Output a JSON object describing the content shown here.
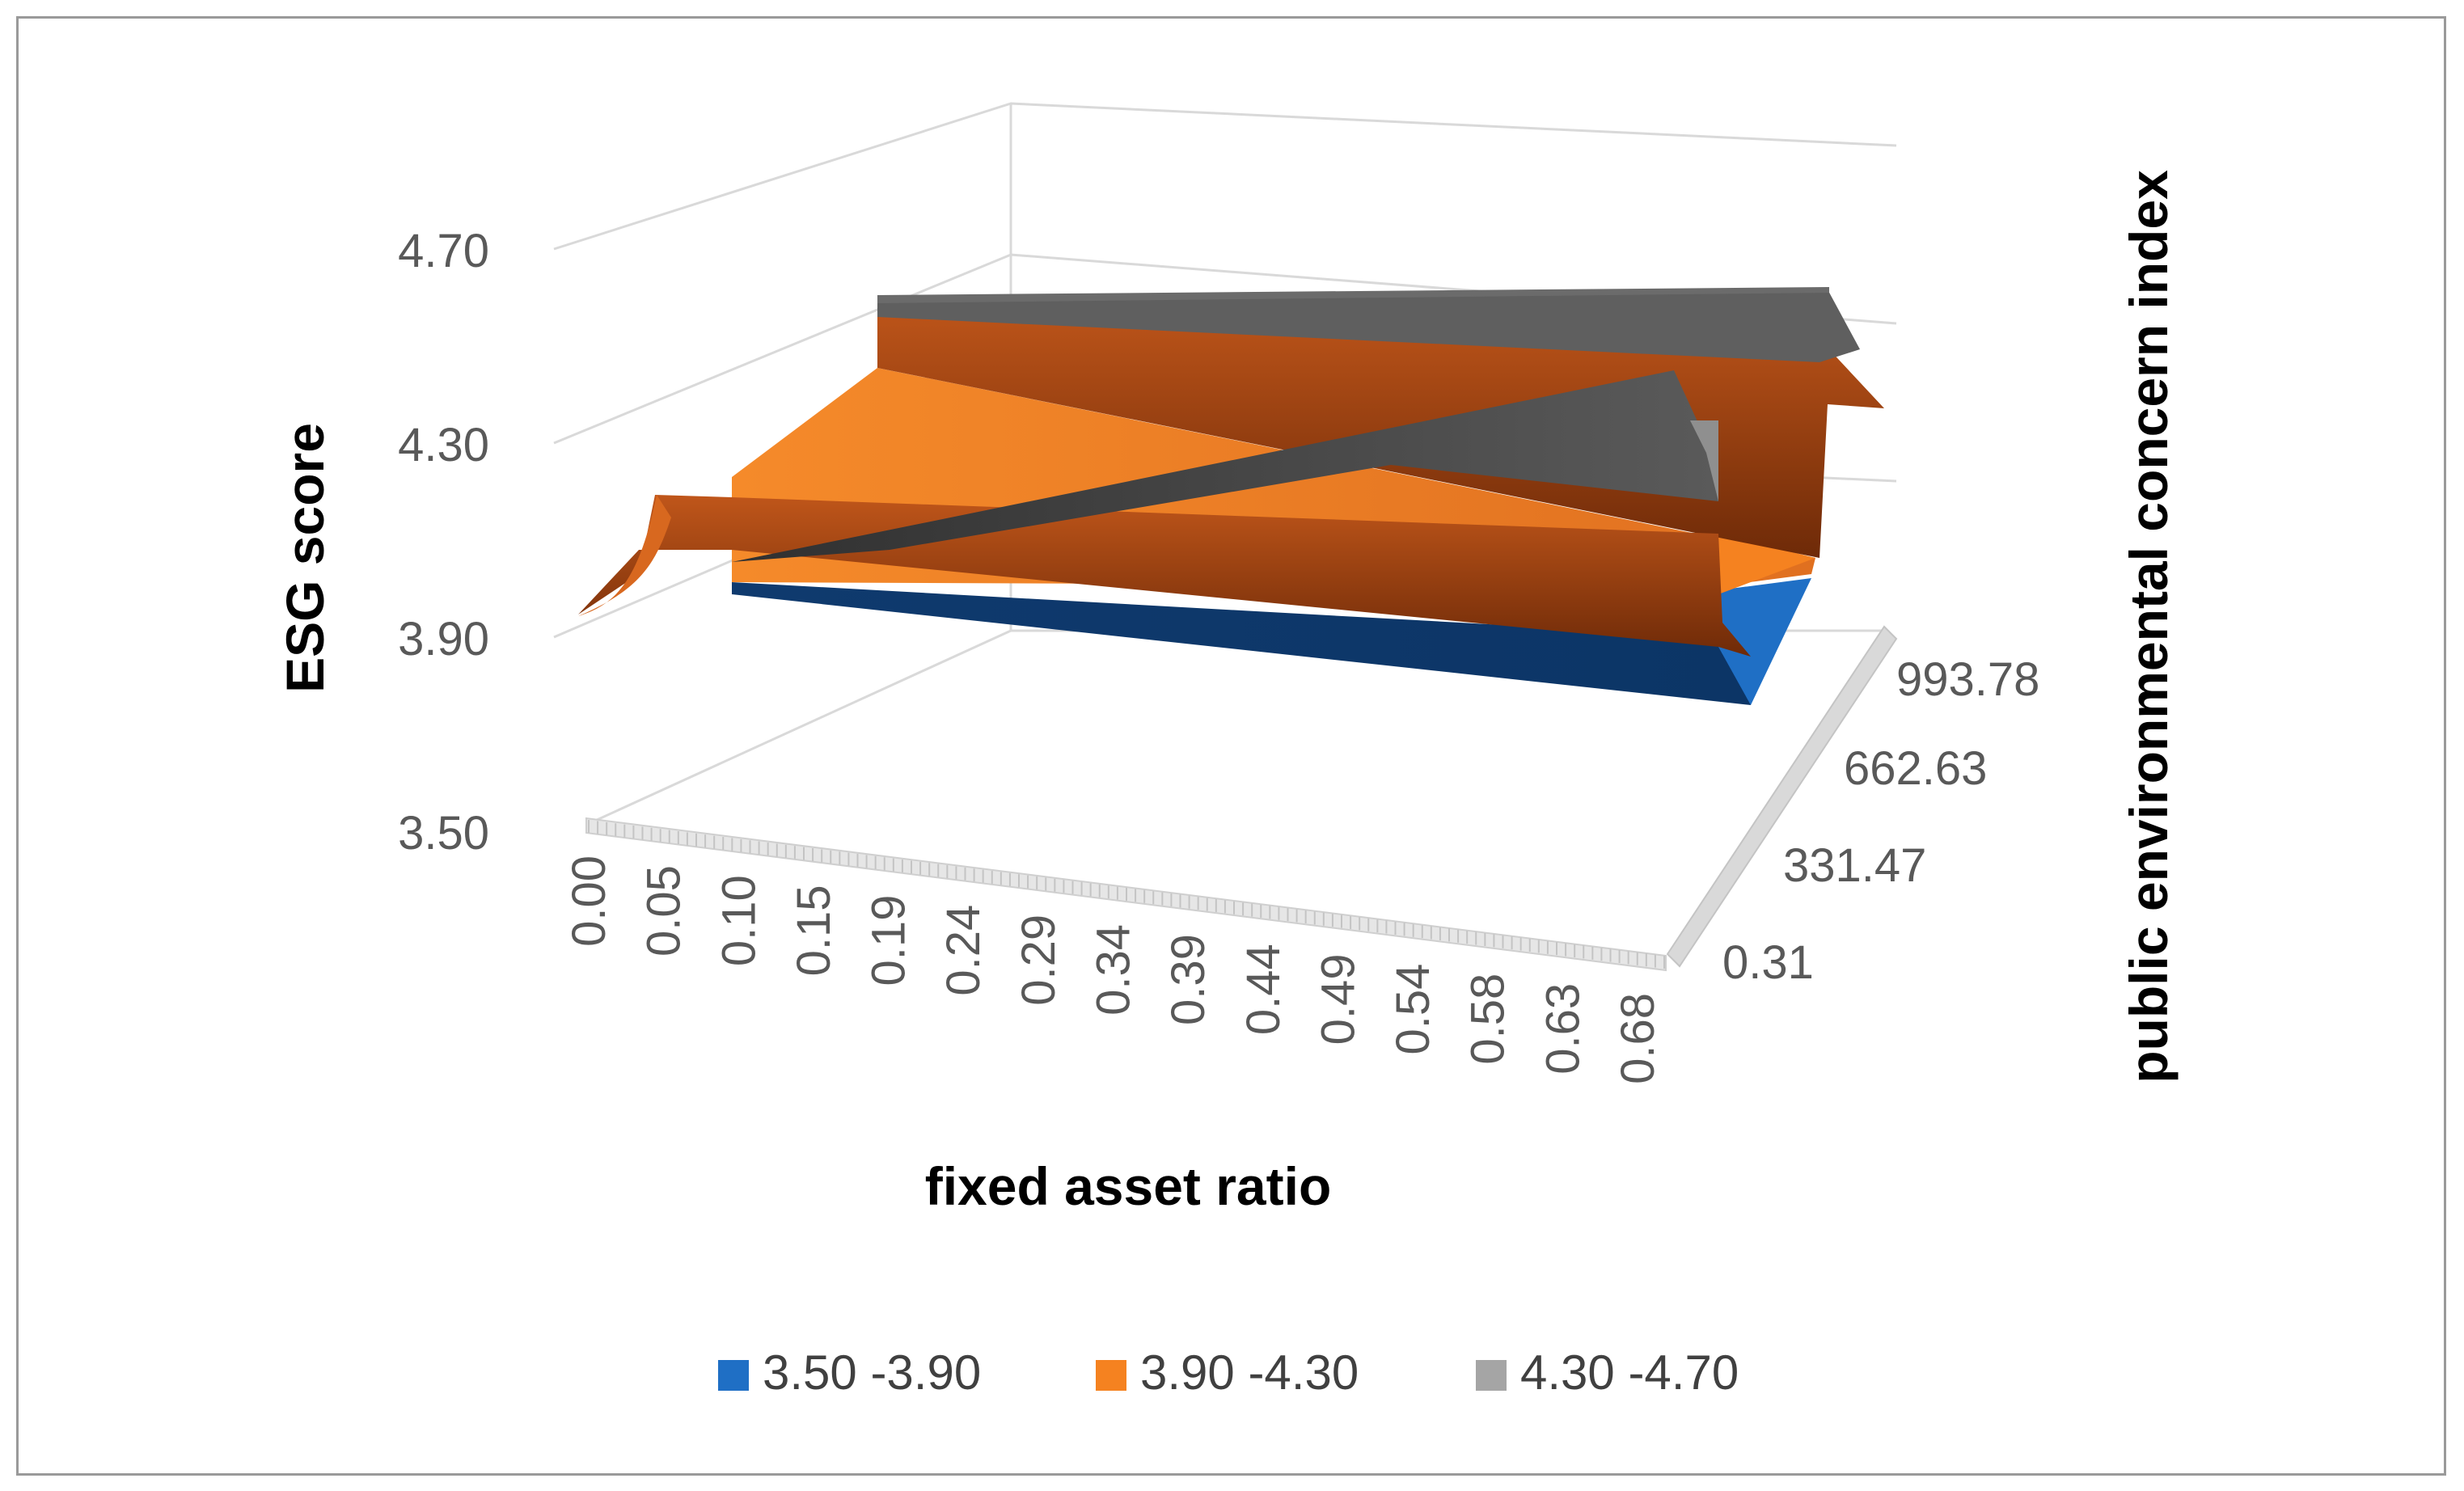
{
  "chart_data": {
    "type": "surface",
    "title": "",
    "xlabel": "fixed asset ratio",
    "ylabel": "ESG score",
    "zlabel": "public environmental concern index",
    "x_ticks": [
      "0.00",
      "0.05",
      "0.10",
      "0.15",
      "0.19",
      "0.24",
      "0.29",
      "0.34",
      "0.39",
      "0.44",
      "0.49",
      "0.54",
      "0.58",
      "0.63",
      "0.68"
    ],
    "z_ticks": [
      "0.31",
      "331.47",
      "662.63",
      "993.78"
    ],
    "y_ticks": [
      "3.50",
      "3.90",
      "4.30",
      "4.70"
    ],
    "ylim": [
      3.5,
      4.7
    ],
    "surface": [
      {
        "z": "0.31",
        "x": [
          0.0,
          0.1,
          0.15,
          0.68
        ],
        "values": [
          3.9,
          4.05,
          4.1,
          4.05
        ]
      },
      {
        "z": "331.47",
        "x": [
          0.0,
          0.1,
          0.68
        ],
        "values": [
          4.1,
          4.1,
          4.0
        ]
      },
      {
        "z": "662.63",
        "x": [
          0.0,
          0.1,
          0.68
        ],
        "values": [
          4.4,
          4.45,
          4.15
        ]
      },
      {
        "z": "993.78",
        "x": [
          0.0,
          0.1,
          0.68
        ],
        "values": [
          4.55,
          4.55,
          4.45
        ]
      }
    ],
    "legend": [
      {
        "label": "3.50 -3.90",
        "color": "#1f6fc5"
      },
      {
        "label": "3.90 -4.30",
        "color": "#f58220"
      },
      {
        "label": "4.30 -4.70",
        "color": "#a5a5a5"
      }
    ]
  }
}
